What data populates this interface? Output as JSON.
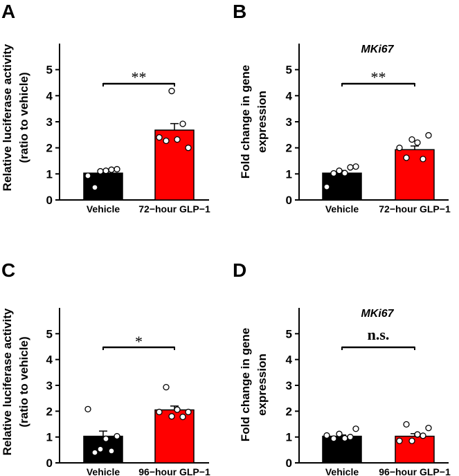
{
  "chart_data": [
    {
      "panel": "A",
      "type": "bar",
      "title": "",
      "ylabel_lines": [
        "Relative luciferase activity",
        "(ratio to vehicle)"
      ],
      "xlabel": "",
      "ylim": [
        0,
        6
      ],
      "yticks": [
        "0",
        "1",
        "2",
        "3",
        "4",
        "5"
      ],
      "categories": [
        "Vehicle",
        "72−hour GLP−1"
      ],
      "colors": [
        "#000000",
        "#ff0000"
      ],
      "values": [
        1.03,
        2.68
      ],
      "errors": [
        0.1,
        0.25
      ],
      "points": [
        [
          0.93,
          0.48,
          1.1,
          1.12,
          1.16,
          1.18
        ],
        [
          2.4,
          2.27,
          4.18,
          2.32,
          2.92,
          2.0
        ]
      ],
      "significance": "**"
    },
    {
      "panel": "B",
      "type": "bar",
      "title": "MKi67",
      "ylabel_lines": [
        "Fold change in gene",
        "expression"
      ],
      "xlabel": "",
      "ylim": [
        0,
        6
      ],
      "yticks": [
        "0",
        "1",
        "2",
        "3",
        "4",
        "5"
      ],
      "categories": [
        "Vehicle",
        "72−hour GLP−1"
      ],
      "colors": [
        "#000000",
        "#ff0000"
      ],
      "values": [
        1.03,
        1.93
      ],
      "errors": [
        0.1,
        0.14
      ],
      "points": [
        [
          0.5,
          1.02,
          1.12,
          1.03,
          1.25,
          1.28
        ],
        [
          2.0,
          1.62,
          2.32,
          2.2,
          1.57,
          2.48
        ]
      ],
      "significance": "**"
    },
    {
      "panel": "C",
      "type": "bar",
      "title": "",
      "ylabel_lines": [
        "Relative luciferase activity",
        "(ratio to vehicle)"
      ],
      "xlabel": "",
      "ylim": [
        0,
        6
      ],
      "yticks": [
        "0",
        "1",
        "2",
        "3",
        "4",
        "5"
      ],
      "categories": [
        "Vehicle",
        "96−hour GLP−1"
      ],
      "colors": [
        "#000000",
        "#ff0000"
      ],
      "values": [
        1.03,
        2.05
      ],
      "errors": [
        0.2,
        0.15
      ],
      "points": [
        [
          2.08,
          0.4,
          0.53,
          0.93,
          0.46,
          1.03
        ],
        [
          1.97,
          2.93,
          1.8,
          2.06,
          1.78,
          1.97
        ]
      ],
      "significance": "*"
    },
    {
      "panel": "D",
      "type": "bar",
      "title": "MKi67",
      "ylabel_lines": [
        "Fold change in gene",
        "expression"
      ],
      "xlabel": "",
      "ylim": [
        0,
        6
      ],
      "yticks": [
        "0",
        "1",
        "2",
        "3",
        "4",
        "5"
      ],
      "categories": [
        "Vehicle",
        "96−hour GLP−1"
      ],
      "colors": [
        "#000000",
        "#ff0000"
      ],
      "values": [
        1.03,
        1.03
      ],
      "errors": [
        0.05,
        0.1
      ],
      "points": [
        [
          1.06,
          0.94,
          1.12,
          0.95,
          1.0,
          1.32
        ],
        [
          0.85,
          1.49,
          0.85,
          1.1,
          1.05,
          1.35
        ]
      ],
      "significance": "n.s."
    }
  ]
}
